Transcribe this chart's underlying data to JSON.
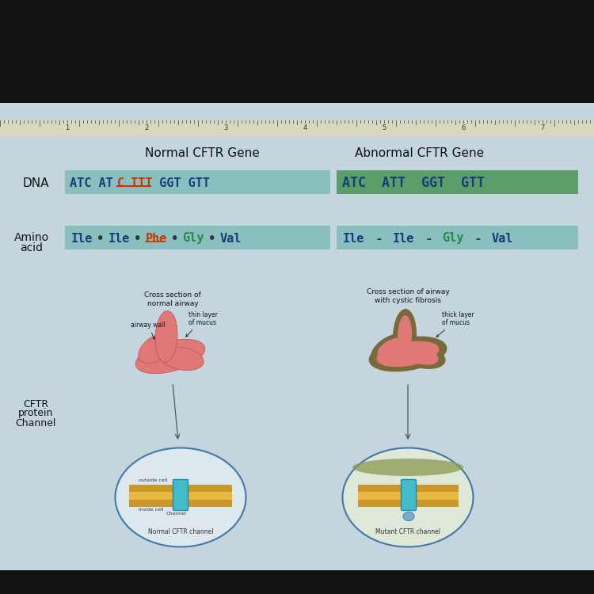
{
  "bg_color": "#111111",
  "content_bg": "#c5d5dd",
  "ruler_bg": "#d8d8c0",
  "normal_title": "Normal CFTR Gene",
  "abnormal_title": "Abnormal CFTR Gene",
  "dna_label": "DNA",
  "amino_label_1": "Amino",
  "amino_label_2": "acid",
  "cftr_label_1": "CFTR",
  "cftr_label_2": "protein",
  "cftr_label_3": "Channel",
  "normal_dna_box_color": "#8abfbf",
  "abnormal_dna_box_color": "#5a9e6a",
  "amino_box_color": "#8abfbf",
  "normal_airway_label": "Cross section of\nnormal airway",
  "abnormal_airway_label": "Cross section of airway\nwith cystic fibrosis",
  "airway_wall_label": "airway wall",
  "thin_mucus_label": "thin layer\nof mucus",
  "thick_mucus_label": "thick layer\nof mucus",
  "normal_cftr_label": "Normal CFTR channel",
  "mutant_cftr_label": "Mutant CFTR channel",
  "outside_cell_label": "outside cell",
  "inside_cell_label": "inside cell",
  "channel_label": "Channel",
  "ruler_numbers": [
    1,
    2,
    3,
    4,
    5,
    6,
    7
  ],
  "ruler_x_positions": [
    85,
    185,
    285,
    385,
    485,
    585,
    685
  ]
}
